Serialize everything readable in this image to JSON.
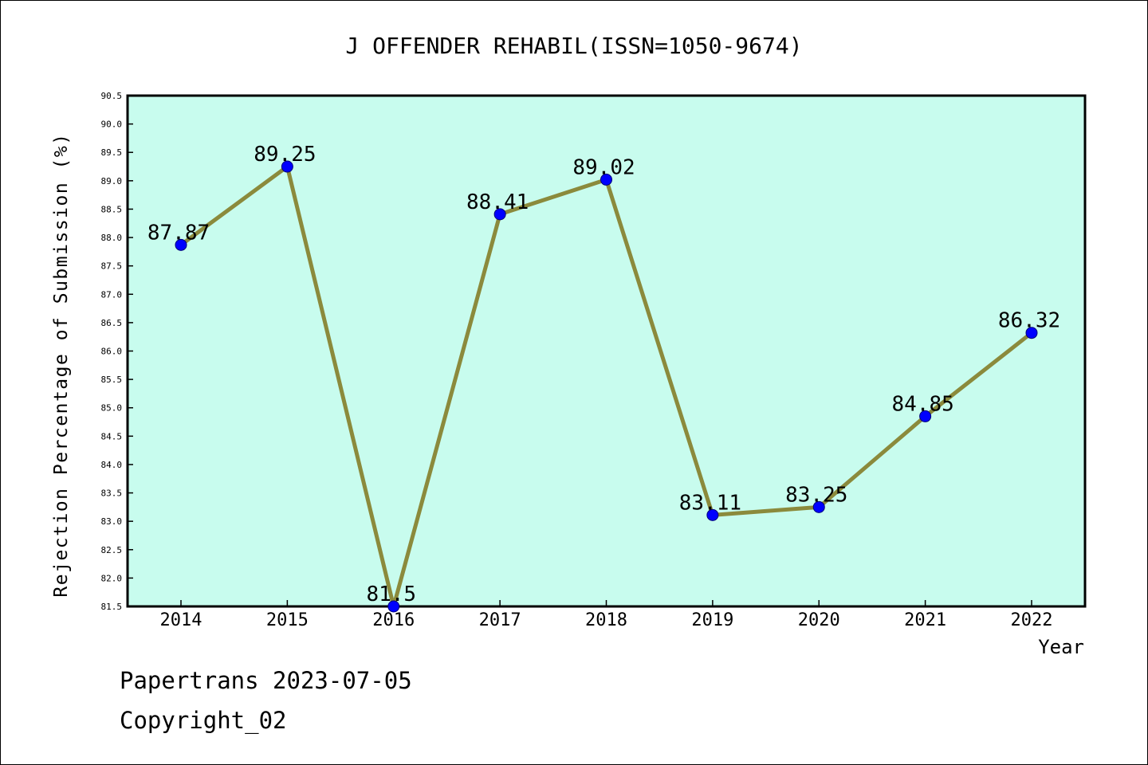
{
  "chart_data": {
    "type": "line",
    "title": "J OFFENDER REHABIL(ISSN=1050-9674)",
    "xlabel": "Year",
    "ylabel": "Rejection Percentage of Submission (%)",
    "x": [
      "2014",
      "2015",
      "2016",
      "2017",
      "2018",
      "2019",
      "2020",
      "2021",
      "2022"
    ],
    "values": [
      87.87,
      89.25,
      81.5,
      88.41,
      89.02,
      83.11,
      83.25,
      84.85,
      86.32
    ],
    "point_labels": [
      "87.87",
      "89.25",
      "81.5",
      "88.41",
      "89.02",
      "83.11",
      "83.25",
      "84.85",
      "86.32"
    ],
    "yticks": [
      "81.5",
      "82.0",
      "82.5",
      "83.0",
      "83.5",
      "84.0",
      "84.5",
      "85.0",
      "85.5",
      "86.0",
      "86.5",
      "87.0",
      "87.5",
      "88.0",
      "88.5",
      "89.0",
      "89.5",
      "90.0",
      "90.5"
    ],
    "ylim": [
      81.5,
      90.5
    ],
    "grid": false,
    "colors": {
      "plot_background": "#c8fcee",
      "line": "#8b8a3c",
      "marker": "#0000ff"
    }
  },
  "footer": {
    "line1": "Papertrans 2023-07-05",
    "line2": "Copyright_02"
  }
}
